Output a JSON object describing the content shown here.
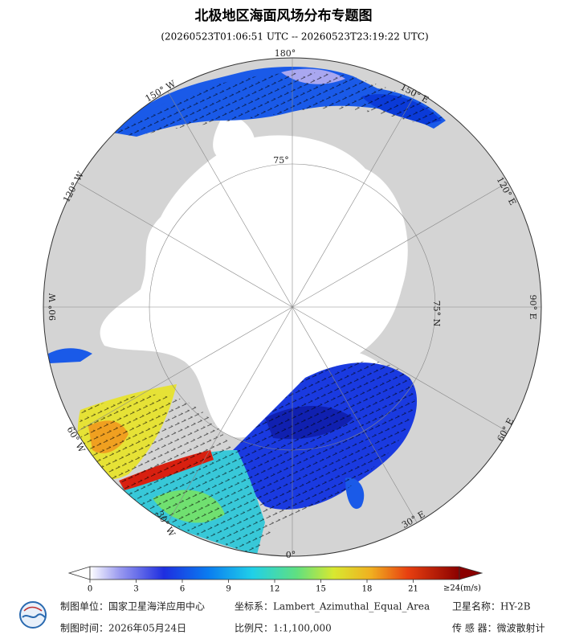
{
  "header": {
    "title": "北极地区海面风场分布专题图",
    "subtitle": "(20260523T01:06:51 UTC -- 20260523T23:19:22 UTC)"
  },
  "map": {
    "labels": {
      "lon_180": "180°",
      "lon_150e": "150° E",
      "lon_120e": "120° E",
      "lon_90e": "90° E",
      "lon_60e": "60° E",
      "lon_30e": "30° E",
      "lon_0": "0°",
      "lon_30w": "30° W",
      "lon_60w": "60° W",
      "lon_90w": "90° W",
      "lon_120w": "120° W",
      "lon_150w": "150° W",
      "lat_75_top": "75°",
      "lat_75_right": "75° N"
    }
  },
  "colorbar": {
    "range": [
      0,
      24
    ],
    "ticks": [
      0,
      3,
      6,
      9,
      12,
      15,
      18,
      21
    ],
    "max_label": "≥24(m/s)"
  },
  "footer": {
    "producer": "制图单位：国家卫星海洋应用中心",
    "projection": "坐标系：Lambert_Azimuthal_Equal_Area",
    "satellite": "卫星名称：HY-2B",
    "date": "制图时间：2026年05月24日",
    "scale": "比例尺：1:1,100,000",
    "sensor": "传 感 器：微波散射计"
  }
}
